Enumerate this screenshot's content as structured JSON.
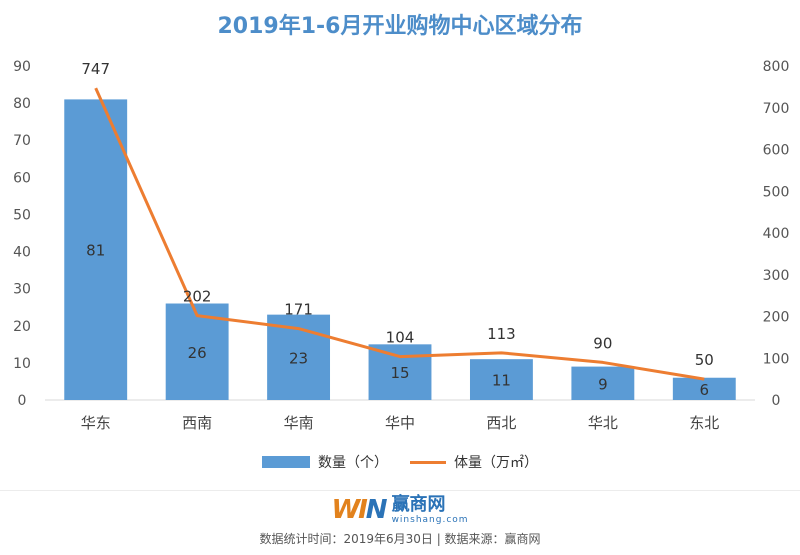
{
  "chart_data": {
    "type": "bar",
    "title": "2019年1-6月开业购物中心区域分布",
    "categories": [
      "华东",
      "西南",
      "华南",
      "华中",
      "西北",
      "华北",
      "东北"
    ],
    "series": [
      {
        "name": "数量（个）",
        "type": "bar",
        "axis": "left",
        "color": "#5b9bd5",
        "values": [
          81,
          26,
          23,
          15,
          11,
          9,
          6
        ]
      },
      {
        "name": "体量（万㎡）",
        "type": "line",
        "axis": "right",
        "color": "#ed7d31",
        "values": [
          747,
          202,
          171,
          104,
          113,
          90,
          50
        ]
      }
    ],
    "y_left": {
      "min": 0,
      "max": 90,
      "ticks": [
        "0",
        "10",
        "20",
        "30",
        "40",
        "50",
        "60",
        "70",
        "80",
        "90"
      ]
    },
    "y_right": {
      "min": 0,
      "max": 800,
      "ticks": [
        "0",
        "100",
        "200",
        "300",
        "400",
        "500",
        "600",
        "700",
        "800"
      ]
    },
    "grid": false,
    "legend_position": "bottom"
  },
  "logo": {
    "mark_w": "WI",
    "mark_n": "N",
    "name": "赢商网",
    "sub": "winshang.com"
  },
  "footer": {
    "note": "数据统计时间：2019年6月30日 | 数据来源：赢商网"
  }
}
